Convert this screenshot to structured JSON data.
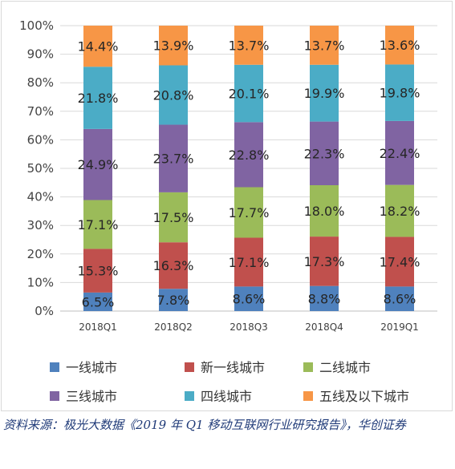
{
  "chart_data": {
    "type": "bar",
    "stacked": true,
    "categories": [
      "2018Q1",
      "2018Q2",
      "2018Q3",
      "2018Q4",
      "2019Q1"
    ],
    "ylim": [
      0,
      100
    ],
    "y_ticks": [
      "0%",
      "10%",
      "20%",
      "30%",
      "40%",
      "50%",
      "60%",
      "70%",
      "80%",
      "90%",
      "100%"
    ],
    "grid": true,
    "legend_position": "bottom",
    "series": [
      {
        "name": "一线城市",
        "color": "#4f81bd",
        "values": [
          6.5,
          7.8,
          8.6,
          8.8,
          8.6
        ],
        "labels": [
          "6.5%",
          "7.8%",
          "8.6%",
          "8.8%",
          "8.6%"
        ]
      },
      {
        "name": "新一线城市",
        "color": "#c0504d",
        "values": [
          15.3,
          16.3,
          17.1,
          17.3,
          17.4
        ],
        "labels": [
          "15.3%",
          "16.3%",
          "17.1%",
          "17.3%",
          "17.4%"
        ]
      },
      {
        "name": "二线城市",
        "color": "#9bbb59",
        "values": [
          17.1,
          17.5,
          17.7,
          18.0,
          18.2
        ],
        "labels": [
          "17.1%",
          "17.5%",
          "17.7%",
          "18.0%",
          "18.2%"
        ]
      },
      {
        "name": "三线城市",
        "color": "#8064a2",
        "values": [
          24.9,
          23.7,
          22.8,
          22.3,
          22.4
        ],
        "labels": [
          "24.9%",
          "23.7%",
          "22.8%",
          "22.3%",
          "22.4%"
        ]
      },
      {
        "name": "四线城市",
        "color": "#4bacc6",
        "values": [
          21.8,
          20.8,
          20.1,
          19.9,
          19.8
        ],
        "labels": [
          "21.8%",
          "20.8%",
          "20.1%",
          "19.9%",
          "19.8%"
        ]
      },
      {
        "name": "五线及以下城市",
        "color": "#f79646",
        "values": [
          14.4,
          13.9,
          13.7,
          13.7,
          13.6
        ],
        "labels": [
          "14.4%",
          "13.9%",
          "13.7%",
          "13.7%",
          "13.6%"
        ]
      }
    ]
  },
  "source_note": "资料来源：极光大数据《2019 年 Q1 移动互联网行业研究报告》，华创证券"
}
